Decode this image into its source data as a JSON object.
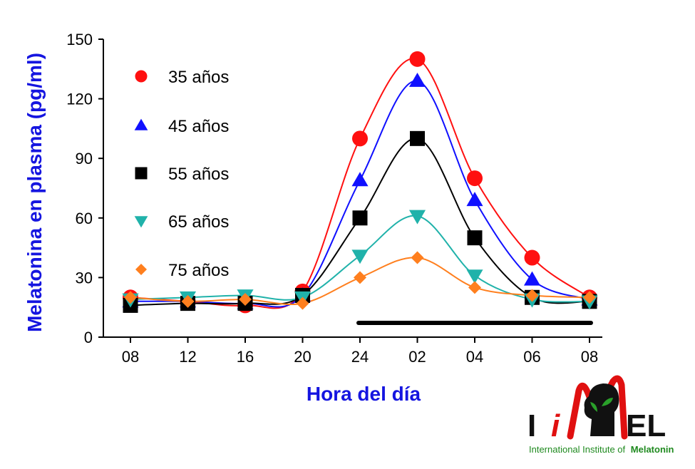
{
  "chart_data": {
    "type": "line",
    "title": "",
    "xlabel": "Hora del día",
    "ylabel": "Melatonina en plasma (pg/ml)",
    "categories": [
      "08",
      "12",
      "16",
      "20",
      "24",
      "02",
      "04",
      "06",
      "08"
    ],
    "yticks": [
      "0",
      "30",
      "60",
      "90",
      "120",
      "150"
    ],
    "ylim": [
      0,
      150
    ],
    "grid": false,
    "legend_position": "top-left",
    "series": [
      {
        "name": "35 años",
        "color": "#ff1010",
        "marker": "circle",
        "values": [
          20,
          18,
          16,
          23,
          100,
          140,
          80,
          40,
          20
        ]
      },
      {
        "name": "45 años",
        "color": "#1010ff",
        "marker": "triangle-up",
        "values": [
          18,
          18,
          17,
          21,
          79,
          129,
          69,
          29,
          19
        ]
      },
      {
        "name": "55 años",
        "color": "#000000",
        "marker": "square",
        "values": [
          16,
          17,
          17,
          21,
          60,
          100,
          50,
          20,
          18
        ]
      },
      {
        "name": "65 años",
        "color": "#20b2aa",
        "marker": "triangle-down",
        "values": [
          19,
          20,
          21,
          20,
          41,
          61,
          31,
          19,
          18
        ]
      },
      {
        "name": "75 años",
        "color": "#ff7f1e",
        "marker": "diamond",
        "values": [
          20,
          18,
          19,
          17,
          30,
          40,
          25,
          21,
          20
        ]
      }
    ],
    "night_bar": {
      "from": "24",
      "to": "08"
    }
  },
  "logo": {
    "brand_text_left": "I",
    "brand_text_i": "i",
    "brand_text_right": "EL",
    "subtitle_prefix": "International Institute of",
    "subtitle_bold": "Melatonin"
  },
  "colors": {
    "axis_title": "#1515e0",
    "axis": "#000000",
    "logo_red": "#e01010",
    "logo_green": "#2aa02a"
  }
}
